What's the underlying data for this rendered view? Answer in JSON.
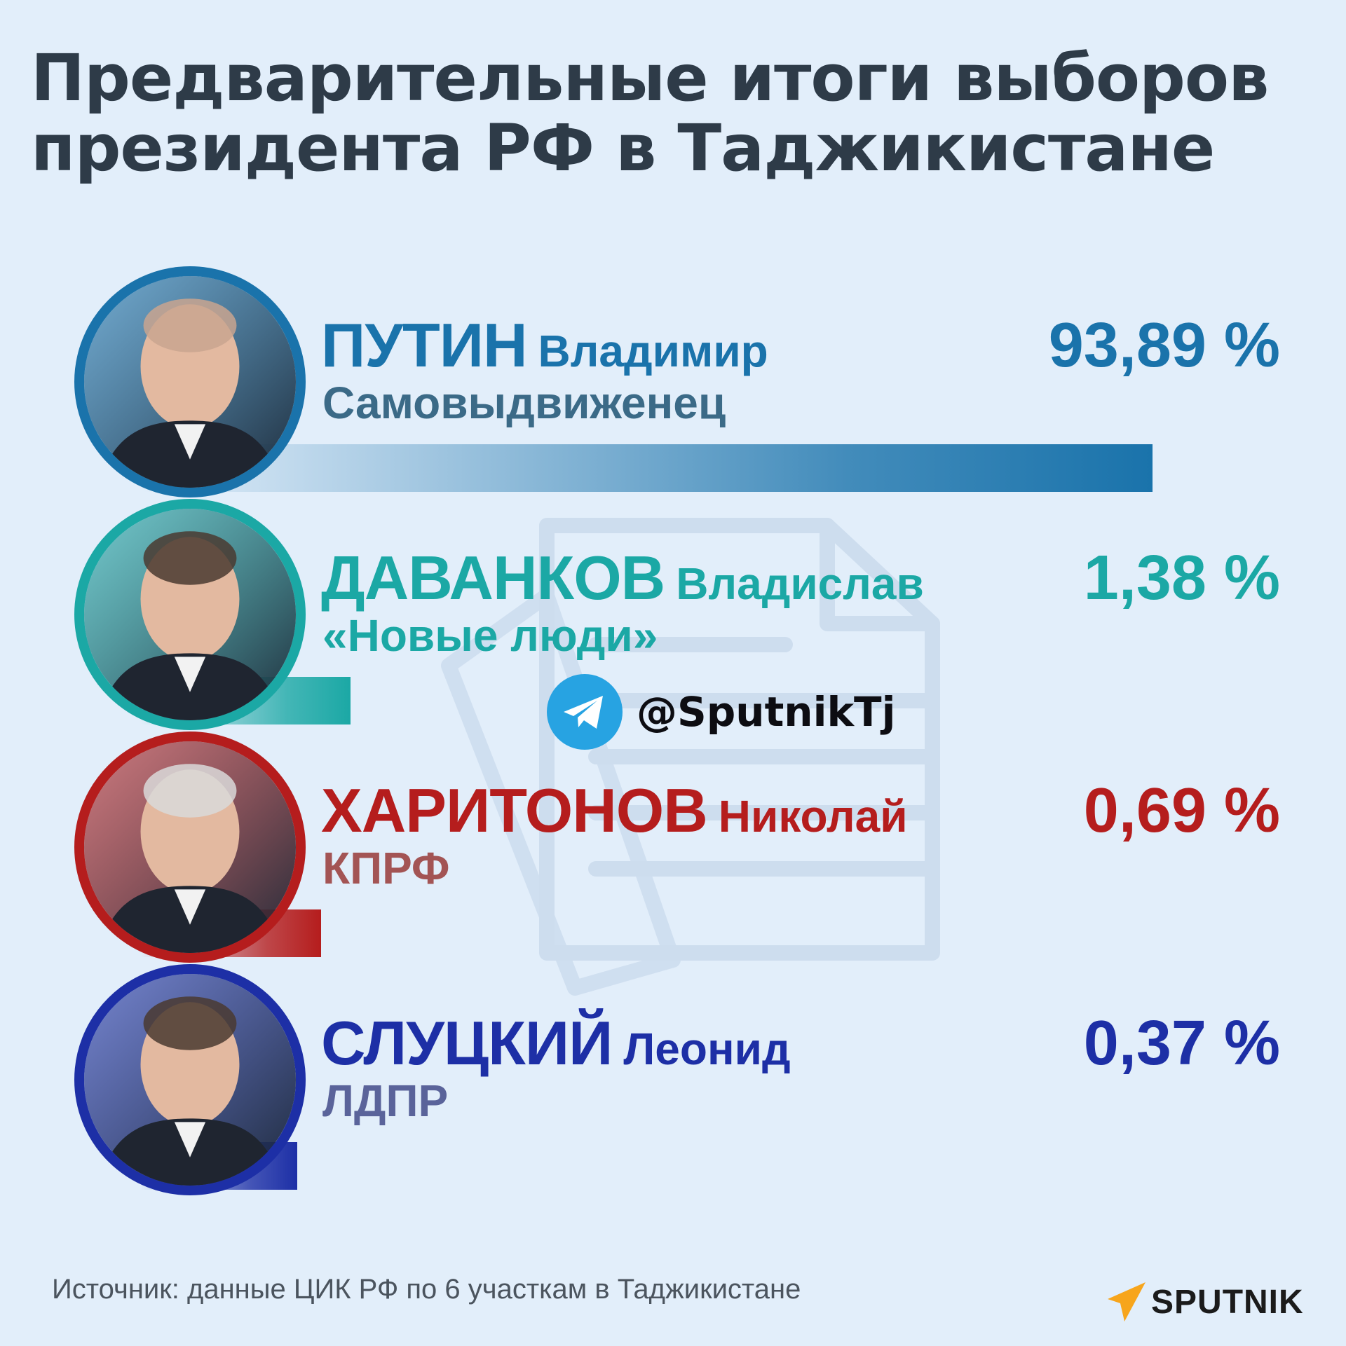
{
  "title": {
    "line1": "Предварительные итоги выборов",
    "line2": "президента РФ в Таджикистане"
  },
  "chart_data": {
    "type": "bar",
    "orientation": "horizontal",
    "title": "Предварительные итоги выборов президента РФ в Таджикистане",
    "xlabel": "",
    "ylabel": "",
    "unit": "%",
    "xlim": [
      0,
      100
    ],
    "categories": [
      "ПУТИН Владимир",
      "ДАВАНКОВ Владислав",
      "ХАРИТОНОВ Николай",
      "СЛУЦКИЙ Леонид"
    ],
    "values": [
      93.89,
      1.38,
      0.69,
      0.37
    ],
    "candidates": [
      {
        "surname": "ПУТИН",
        "first_name": "Владимир",
        "party": "Самовыдвиженец",
        "value": 93.89,
        "label": "93,89 %",
        "color": "#1a73ab",
        "party_color": "#3b6a87"
      },
      {
        "surname": "ДАВАНКОВ",
        "first_name": "Владислав",
        "party": "«Новые люди»",
        "value": 1.38,
        "label": "1,38 %",
        "color": "#1ba8a5",
        "party_color": "#1ba8a5"
      },
      {
        "surname": "ХАРИТОНОВ",
        "first_name": "Николай",
        "party": "КПРФ",
        "value": 0.69,
        "label": "0,69 %",
        "color": "#b51d1d",
        "party_color": "#a35454"
      },
      {
        "surname": "СЛУЦКИЙ",
        "first_name": "Леонид",
        "party": "ЛДПР",
        "value": 0.37,
        "label": "0,37 %",
        "color": "#1d2fa6",
        "party_color": "#5a639a"
      }
    ]
  },
  "social": {
    "icon": "telegram-icon",
    "handle": "@SputnikTj"
  },
  "footer": {
    "source": "Источник: данные ЦИК РФ по 6 участкам в Таджикистане",
    "logo_text": "SPUTNIK",
    "logo_icon": "sputnik-arrow-icon",
    "logo_color": "#f7a51c"
  },
  "background_color": "#e2eefa"
}
